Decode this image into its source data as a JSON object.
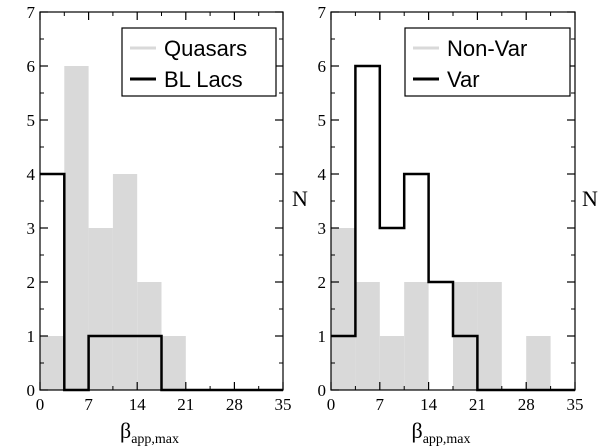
{
  "chart_data": [
    {
      "type": "bar",
      "bin_edges": [
        0,
        3.5,
        7,
        10.5,
        14,
        17.5,
        21,
        24.5,
        28,
        31.5,
        35
      ],
      "series": [
        {
          "name": "Quasars",
          "values": [
            1,
            6,
            3,
            4,
            2,
            1,
            0,
            0,
            0,
            0
          ],
          "style": "filled",
          "color": "#d9d9d9"
        },
        {
          "name": "BL Lacs",
          "values": [
            4,
            0,
            1,
            1,
            1,
            0,
            0,
            0,
            0,
            0
          ],
          "style": "step",
          "color": "#000000"
        }
      ],
      "xlim": [
        0,
        35
      ],
      "ylim": [
        0,
        7
      ],
      "xticks": [
        "0",
        "7",
        "14",
        "21",
        "28",
        "35"
      ],
      "yticks": [
        "0",
        "1",
        "2",
        "3",
        "4",
        "5",
        "6",
        "7"
      ],
      "xlabel": "β",
      "xlabel_sub": "app,max",
      "ylabel": "",
      "legend_position": "top-right"
    },
    {
      "type": "bar",
      "bin_edges": [
        0,
        3.5,
        7,
        10.5,
        14,
        17.5,
        21,
        24.5,
        28,
        31.5,
        35
      ],
      "series": [
        {
          "name": "Non-Var",
          "values": [
            3,
            2,
            1,
            2,
            0,
            2,
            2,
            0,
            1,
            0
          ],
          "style": "filled",
          "color": "#d9d9d9"
        },
        {
          "name": "Var",
          "values": [
            1,
            6,
            3,
            4,
            2,
            1,
            0,
            0,
            0,
            0
          ],
          "style": "step",
          "color": "#000000"
        }
      ],
      "xlim": [
        0,
        35
      ],
      "ylim": [
        0,
        7
      ],
      "xticks": [
        "0",
        "7",
        "14",
        "21",
        "28",
        "35"
      ],
      "yticks": [
        "0",
        "1",
        "2",
        "3",
        "4",
        "5",
        "6",
        "7"
      ],
      "xlabel": "β",
      "xlabel_sub": "app,max",
      "ylabel": "N",
      "legend_position": "top-right"
    }
  ],
  "shared": {
    "ylabel_between": "N"
  }
}
